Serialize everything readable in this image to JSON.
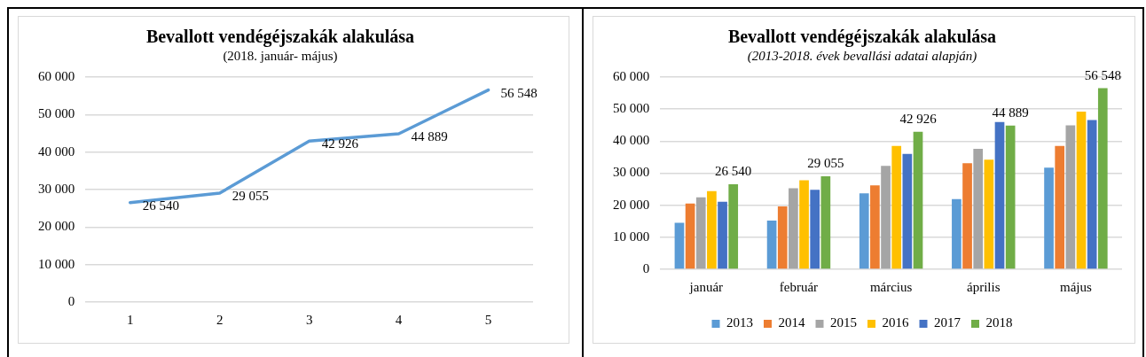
{
  "chart_data": [
    {
      "type": "line",
      "title": "Bevallott vendégéjszakák alakulása",
      "subtitle": "(2018. január- május)",
      "categories": [
        "1",
        "2",
        "3",
        "4",
        "5"
      ],
      "series": [
        {
          "color": "#5b9bd5",
          "values": [
            26540,
            29055,
            42926,
            44889,
            56548
          ]
        }
      ],
      "data_labels": true,
      "marker": "none",
      "grid": "y",
      "legend": false,
      "ylim": [
        0,
        60000
      ],
      "yticks": [
        {
          "value": 0,
          "label": "0"
        },
        {
          "value": 10000,
          "label": "10 000"
        },
        {
          "value": 20000,
          "label": "20 000"
        },
        {
          "value": 30000,
          "label": "30 000"
        },
        {
          "value": 40000,
          "label": "40 000"
        },
        {
          "value": 50000,
          "label": "50 000"
        },
        {
          "value": 60000,
          "label": "60 000"
        }
      ]
    },
    {
      "type": "bar",
      "title": "Bevallott vendégéjszakák alakulása",
      "subtitle": "(2013-2018. évek bevallási adatai alapján)",
      "categories": [
        "január",
        "február",
        "március",
        "április",
        "május"
      ],
      "series": [
        {
          "name": "2013",
          "color": "#5b9bd5",
          "values": [
            14500,
            15200,
            23700,
            21900,
            31700
          ]
        },
        {
          "name": "2014",
          "color": "#ed7d31",
          "values": [
            20500,
            19600,
            26200,
            33100,
            38500
          ]
        },
        {
          "name": "2015",
          "color": "#a5a5a5",
          "values": [
            22500,
            25300,
            32300,
            37600,
            44900
          ]
        },
        {
          "name": "2016",
          "color": "#ffc000",
          "values": [
            24400,
            27800,
            38500,
            34200,
            49200
          ]
        },
        {
          "name": "2017",
          "color": "#4472c4",
          "values": [
            21100,
            24800,
            36000,
            46000,
            46600
          ]
        },
        {
          "name": "2018",
          "color": "#70ad47",
          "values": [
            26540,
            29055,
            42926,
            44889,
            56548
          ],
          "value_labels": [
            "26 540",
            "29 055",
            "42 926",
            "44 889",
            "56 548"
          ]
        }
      ],
      "grid": "y",
      "legend": "bottom",
      "ylim": [
        0,
        60000
      ],
      "yticks": [
        {
          "value": 0,
          "label": "0"
        },
        {
          "value": 10000,
          "label": "10 000"
        },
        {
          "value": 20000,
          "label": "20 000"
        },
        {
          "value": 30000,
          "label": "30 000"
        },
        {
          "value": 40000,
          "label": "40 000"
        },
        {
          "value": 50000,
          "label": "50 000"
        },
        {
          "value": 60000,
          "label": "60 000"
        }
      ]
    }
  ]
}
